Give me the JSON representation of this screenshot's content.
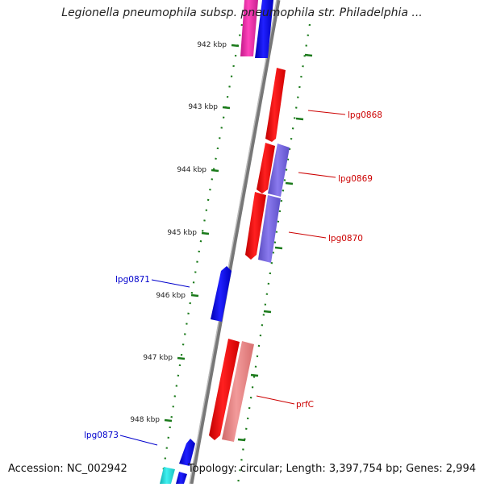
{
  "title": "Legionella pneumophila subsp. pneumophila str. Philadelphia ...",
  "footer": {
    "accession": "Accession: NC_002942",
    "summary": "Topology: circular; Length: 3,397,754 bp; Genes: 2,994"
  },
  "ticks": [
    "942 kbp",
    "943 kbp",
    "944 kbp",
    "945 kbp",
    "946 kbp",
    "947 kbp",
    "948 kbp"
  ],
  "gene_labels": [
    "lpg0868",
    "lpg0869",
    "lpg0870",
    "lpg0871",
    "lpg0873",
    "prfC"
  ],
  "colors": {
    "backbone": "#8a8a8a",
    "tick": "#1a7a1a",
    "red_gene": "#ff1010",
    "blue_gene": "#1010ee",
    "purple_gene": "#7766dd",
    "pink_gene": "#ee8888",
    "magenta_gene": "#ee22aa",
    "cyan_gene": "#22dddd",
    "label_red": "#cc0000",
    "label_blue": "#0000cc"
  }
}
